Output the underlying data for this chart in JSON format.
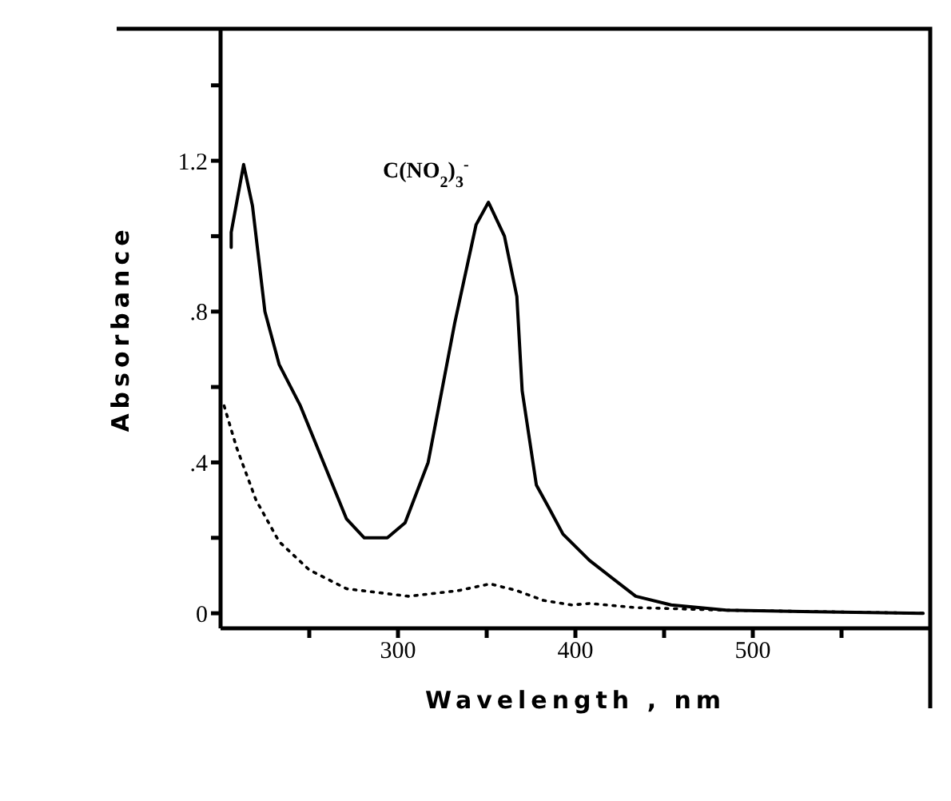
{
  "chart_data": {
    "type": "line",
    "xlabel": "Wavelength , nm",
    "ylabel": "Absorbance",
    "xlim": [
      200,
      600
    ],
    "ylim": [
      -0.04,
      1.55
    ],
    "xticks": [
      {
        "value": 250,
        "label": null
      },
      300,
      {
        "value": 350,
        "label": null
      },
      400,
      {
        "value": 450,
        "label": null
      },
      500,
      {
        "value": 550,
        "label": null
      }
    ],
    "yticks": [
      0,
      {
        "value": 0.2,
        "label": null
      },
      {
        "value": 0.4,
        "label": ".4"
      },
      {
        "value": 0.6,
        "label": null
      },
      {
        "value": 0.8,
        "label": ".8"
      },
      {
        "value": 1.0,
        "label": null
      },
      1.2,
      {
        "value": 1.4,
        "label": null
      }
    ],
    "marker": "none",
    "annotations": [
      {
        "text": "C(NO$_{2}$)$_{3}$$^{-}$",
        "x": 352,
        "y": 1.09
      }
    ],
    "series": [
      {
        "color": "#000000",
        "line_style": "solid",
        "x": [
          206,
          206,
          213,
          218,
          225,
          233,
          245,
          258,
          271,
          281,
          294,
          304,
          317,
          332,
          344,
          351,
          360,
          367,
          370,
          378,
          385,
          393,
          408,
          434,
          454,
          485,
          535,
          596
        ],
        "values": [
          0.97,
          1.01,
          1.19,
          1.08,
          0.8,
          0.66,
          0.55,
          0.4,
          0.25,
          0.2,
          0.2,
          0.24,
          0.4,
          0.77,
          1.03,
          1.09,
          1.0,
          0.84,
          0.59,
          0.34,
          0.28,
          0.21,
          0.14,
          0.045,
          0.022,
          0.008,
          0.004,
          0
        ]
      },
      {
        "color": "#000000",
        "line_style": "dotted",
        "x": [
          202,
          209,
          220,
          233,
          250,
          271,
          306,
          334,
          352,
          367,
          382,
          398,
          408,
          434,
          485,
          596
        ],
        "values": [
          0.55,
          0.44,
          0.3,
          0.19,
          0.115,
          0.065,
          0.045,
          0.06,
          0.078,
          0.06,
          0.034,
          0.022,
          0.026,
          0.015,
          0.008,
          0
        ]
      }
    ]
  }
}
